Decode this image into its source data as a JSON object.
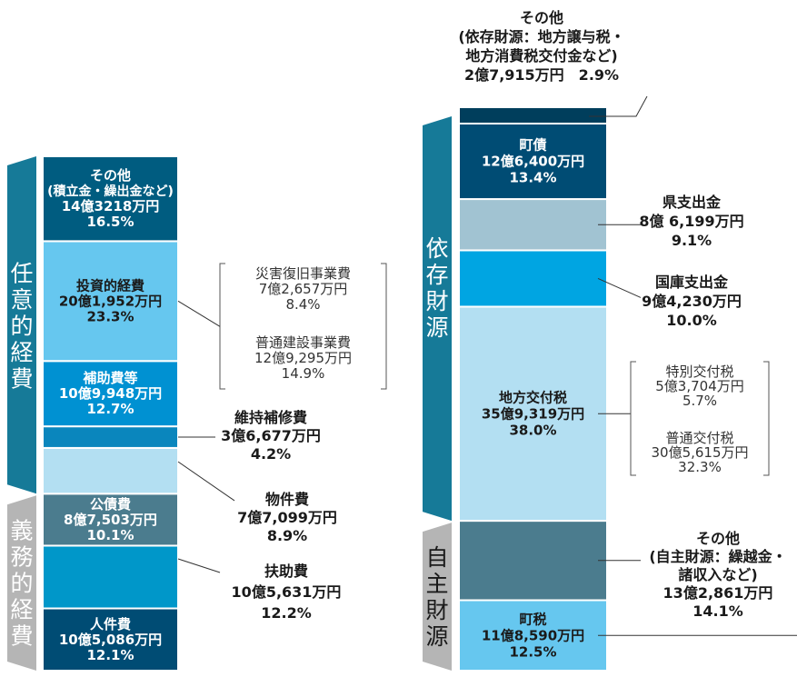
{
  "chart_data": [
    {
      "type": "bar",
      "stacked": true,
      "title": "",
      "groups": [
        {
          "label": "任意的経費",
          "label_chars": [
            "任",
            "意",
            "的",
            "経",
            "費"
          ],
          "color": "#167a98"
        },
        {
          "label": "義務的経費",
          "label_chars": [
            "義",
            "務",
            "的",
            "経",
            "費"
          ],
          "color": "#b5b5b5"
        }
      ],
      "segments": [
        {
          "name_lines": [
            "人件費"
          ],
          "amount": "10億5,086万円",
          "percent": "12.1%",
          "value": 12.1,
          "group": "義務的経費",
          "color": "#004c74",
          "label_position": "inside"
        },
        {
          "name_lines": [
            "扶助費"
          ],
          "amount": "10億5,631万円",
          "percent": "12.2%",
          "value": 12.2,
          "group": "義務的経費",
          "color": "#0097c9",
          "label_position": "outside"
        },
        {
          "name_lines": [
            "公債費"
          ],
          "amount": "8億7,503万円",
          "percent": "10.1%",
          "value": 10.1,
          "group": "義務的経費",
          "color": "#4b7c8e",
          "label_position": "inside"
        },
        {
          "name_lines": [
            "物件費"
          ],
          "amount": "7億7,099万円",
          "percent": "8.9%",
          "value": 8.9,
          "group": "任意的経費",
          "color": "#b3dff2",
          "label_position": "outside"
        },
        {
          "name_lines": [
            "維持補修費"
          ],
          "amount": "3億6,677万円",
          "percent": "4.2%",
          "value": 4.2,
          "group": "任意的経費",
          "color": "#0a86bd",
          "label_position": "outside"
        },
        {
          "name_lines": [
            "補助費等"
          ],
          "amount": "10億9,948万円",
          "percent": "12.7%",
          "value": 12.7,
          "group": "任意的経費",
          "color": "#0091d2",
          "label_position": "inside"
        },
        {
          "name_lines": [
            "投資的経費"
          ],
          "amount": "20億1,952万円",
          "percent": "23.3%",
          "value": 23.3,
          "group": "任意的経費",
          "color": "#66c7ef",
          "label_position": "inside",
          "breakdown": [
            {
              "name": "災害復旧事業費",
              "amount": "7億2,657万円",
              "percent": "8.4%"
            },
            {
              "name": "普通建設事業費",
              "amount": "12億9,295万円",
              "percent": "14.9%"
            }
          ]
        },
        {
          "name_lines": [
            "その他",
            "(積立金・繰出金など)"
          ],
          "amount": "14億3218万円",
          "percent": "16.5%",
          "value": 16.5,
          "group": "任意的経費",
          "color": "#005c80",
          "label_position": "inside"
        }
      ]
    },
    {
      "type": "bar",
      "stacked": true,
      "title": "",
      "groups": [
        {
          "label": "依存財源",
          "label_chars": [
            "依",
            "存",
            "財",
            "源"
          ],
          "color": "#167a98"
        },
        {
          "label": "自主財源",
          "label_chars": [
            "自",
            "主",
            "財",
            "源"
          ],
          "color": "#b5b5b5"
        }
      ],
      "segments": [
        {
          "name_lines": [
            "町税"
          ],
          "amount": "11億8,590万円",
          "percent": "12.5%",
          "value": 12.5,
          "group": "自主財源",
          "color": "#66c7ef",
          "label_position": "inside"
        },
        {
          "name_lines": [
            "その他",
            "(自主財源：繰越金・",
            "諸収入など)"
          ],
          "amount": "13億2,861万円",
          "percent": "14.1%",
          "value": 14.1,
          "group": "自主財源",
          "color": "#4b7c8e",
          "label_position": "outside"
        },
        {
          "name_lines": [
            "地方交付税"
          ],
          "amount": "35億9,319万円",
          "percent": "38.0%",
          "value": 38.0,
          "group": "依存財源",
          "color": "#b3dff2",
          "label_position": "inside",
          "breakdown": [
            {
              "name": "特別交付税",
              "amount": "5億3,704万円",
              "percent": "5.7%"
            },
            {
              "name": "普通交付税",
              "amount": "30億5,615万円",
              "percent": "32.3%"
            }
          ]
        },
        {
          "name_lines": [
            "国庫支出金"
          ],
          "amount": "9億4,230万円",
          "percent": "10.0%",
          "value": 10.0,
          "group": "依存財源",
          "color": "#00a5e2",
          "label_position": "outside"
        },
        {
          "name_lines": [
            "県支出金"
          ],
          "amount": "8億 6,199万円",
          "percent": "9.1%",
          "value": 9.1,
          "group": "依存財源",
          "color": "#a1c3d2",
          "label_position": "outside"
        },
        {
          "name_lines": [
            "町債"
          ],
          "amount": "12億6,400万円",
          "percent": "13.4%",
          "value": 13.4,
          "group": "依存財源",
          "color": "#004c74",
          "label_position": "inside"
        },
        {
          "name_lines": [
            "その他",
            "(依存財源：地方譲与税・",
            "地方消費税交付金など)"
          ],
          "amount": "2億7,915万円",
          "amount_percent_line": "2億7,915万円　2.9%",
          "percent": "2.9%",
          "value": 2.9,
          "group": "依存財源",
          "color": "#003e5c",
          "label_position": "outside-top"
        }
      ]
    }
  ]
}
